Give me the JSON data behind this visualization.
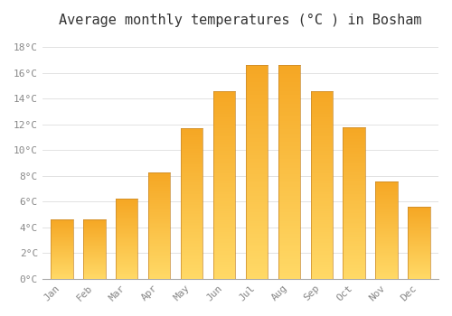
{
  "title": "Average monthly temperatures (°C ) in Bosham",
  "months": [
    "Jan",
    "Feb",
    "Mar",
    "Apr",
    "May",
    "Jun",
    "Jul",
    "Aug",
    "Sep",
    "Oct",
    "Nov",
    "Dec"
  ],
  "temperatures": [
    4.6,
    4.6,
    6.2,
    8.3,
    11.7,
    14.6,
    16.6,
    16.6,
    14.6,
    11.8,
    7.6,
    5.6
  ],
  "bar_color_bottom": "#FFD966",
  "bar_color_top": "#F5A623",
  "bar_edge_color": "#C8882A",
  "background_color": "#FFFFFF",
  "plot_bg_color": "#FFFFFF",
  "grid_color": "#DDDDDD",
  "ytick_labels": [
    "0°C",
    "2°C",
    "4°C",
    "6°C",
    "8°C",
    "10°C",
    "12°C",
    "14°C",
    "16°C",
    "18°C"
  ],
  "ytick_values": [
    0,
    2,
    4,
    6,
    8,
    10,
    12,
    14,
    16,
    18
  ],
  "ylim": [
    0,
    19
  ],
  "title_fontsize": 11,
  "tick_fontsize": 8,
  "tick_color": "#888888",
  "title_color": "#333333"
}
